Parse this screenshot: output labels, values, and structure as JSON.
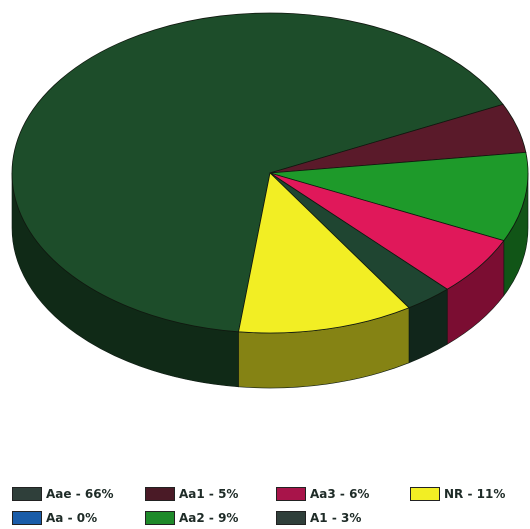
{
  "chart_data": {
    "type": "pie",
    "title": "",
    "slices": [
      {
        "label": "Aae - 66%",
        "value": 66,
        "color": "#1d4d2a"
      },
      {
        "label": "Aa1 - 5%",
        "value": 5,
        "color": "#5a1a2a"
      },
      {
        "label": "Aa2 - 9%",
        "value": 9,
        "color": "#1e9a2a"
      },
      {
        "label": "Aa3 - 6%",
        "value": 6,
        "color": "#e0185a"
      },
      {
        "label": "A1 - 3%",
        "value": 3,
        "color": "#1f4531"
      },
      {
        "label": "NR - 11%",
        "value": 11,
        "color": "#f2ee24"
      },
      {
        "label": "Aa - 0%",
        "value": 0,
        "color": "#1a5ca8"
      }
    ],
    "legend": {
      "placement": "bottom",
      "entries": [
        {
          "label": "Aae - 66%",
          "color": "#2f3f3a"
        },
        {
          "label": "Aa1 - 5%",
          "color": "#4a1a26"
        },
        {
          "label": "Aa3 - 6%",
          "color": "#a8144a"
        },
        {
          "label": "NR - 11%",
          "color": "#f2ee24"
        },
        {
          "label": "Aa - 0%",
          "color": "#1a5ca8"
        },
        {
          "label": "Aa2 - 9%",
          "color": "#1e8a2a"
        },
        {
          "label": "A1 - 3%",
          "color": "#2f3f3a"
        }
      ]
    }
  }
}
